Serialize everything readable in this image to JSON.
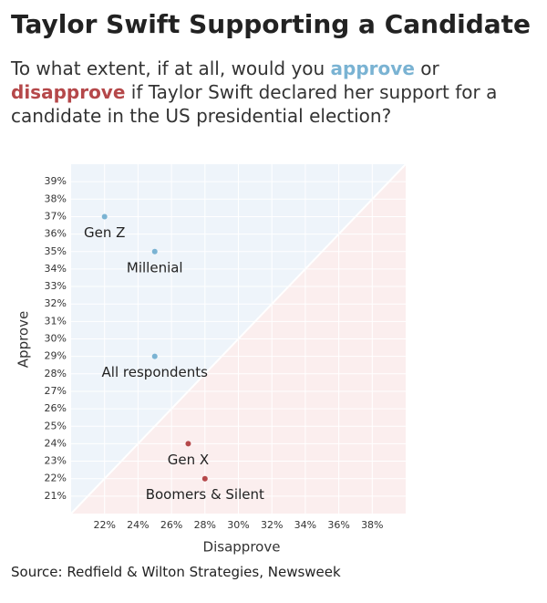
{
  "chart_data": {
    "type": "scatter",
    "title": "Taylor Swift Supporting a Candidate",
    "subtitle": [
      "To what extent, if at all, would you ",
      "approve",
      " or ",
      "disapprove",
      " if Taylor Swift declared her support for a candidate in the US presidential election?"
    ],
    "approve_color": "#7ab3d3",
    "disapprove_color": "#b5484a",
    "x_label": "Disapprove",
    "y_label": "Approve",
    "labels": [
      "Gen Z",
      "Millenial",
      "All respondents",
      "Gen X",
      "Boomers & Silent"
    ],
    "x": [
      22,
      25,
      25,
      27,
      28
    ],
    "values": [
      37,
      35,
      29,
      24,
      22
    ],
    "colors": [
      "#7ab3d3",
      "#7ab3d3",
      "#7ab3d3",
      "#b5484a",
      "#b5484a"
    ],
    "xlim": [
      20,
      40
    ],
    "ylim": [
      20,
      40
    ],
    "xticks": [
      {
        "value": 22,
        "label": "22%"
      },
      {
        "value": 24,
        "label": "24%"
      },
      {
        "value": 26,
        "label": "26%"
      },
      {
        "value": 28,
        "label": "28%"
      },
      {
        "value": 30,
        "label": "30%"
      },
      {
        "value": 32,
        "label": "32%"
      },
      {
        "value": 34,
        "label": "34%"
      },
      {
        "value": 36,
        "label": "36%"
      },
      {
        "value": 38,
        "label": "38%"
      }
    ],
    "yticks": [
      {
        "value": 21,
        "label": "21%"
      },
      {
        "value": 22,
        "label": "22%"
      },
      {
        "value": 23,
        "label": "23%"
      },
      {
        "value": 24,
        "label": "24%"
      },
      {
        "value": 25,
        "label": "25%"
      },
      {
        "value": 26,
        "label": "26%"
      },
      {
        "value": 27,
        "label": "27%"
      },
      {
        "value": 28,
        "label": "28%"
      },
      {
        "value": 29,
        "label": "29%"
      },
      {
        "value": 30,
        "label": "30%"
      },
      {
        "value": 31,
        "label": "31%"
      },
      {
        "value": 32,
        "label": "32%"
      },
      {
        "value": 33,
        "label": "33%"
      },
      {
        "value": 34,
        "label": "34%"
      },
      {
        "value": 35,
        "label": "35%"
      },
      {
        "value": 36,
        "label": "36%"
      },
      {
        "value": 37,
        "label": "37%"
      },
      {
        "value": 38,
        "label": "38%"
      },
      {
        "value": 39,
        "label": "39%"
      }
    ],
    "grid": true,
    "source": "Source: Redfield & Wilton Strategies, Newsweek"
  }
}
